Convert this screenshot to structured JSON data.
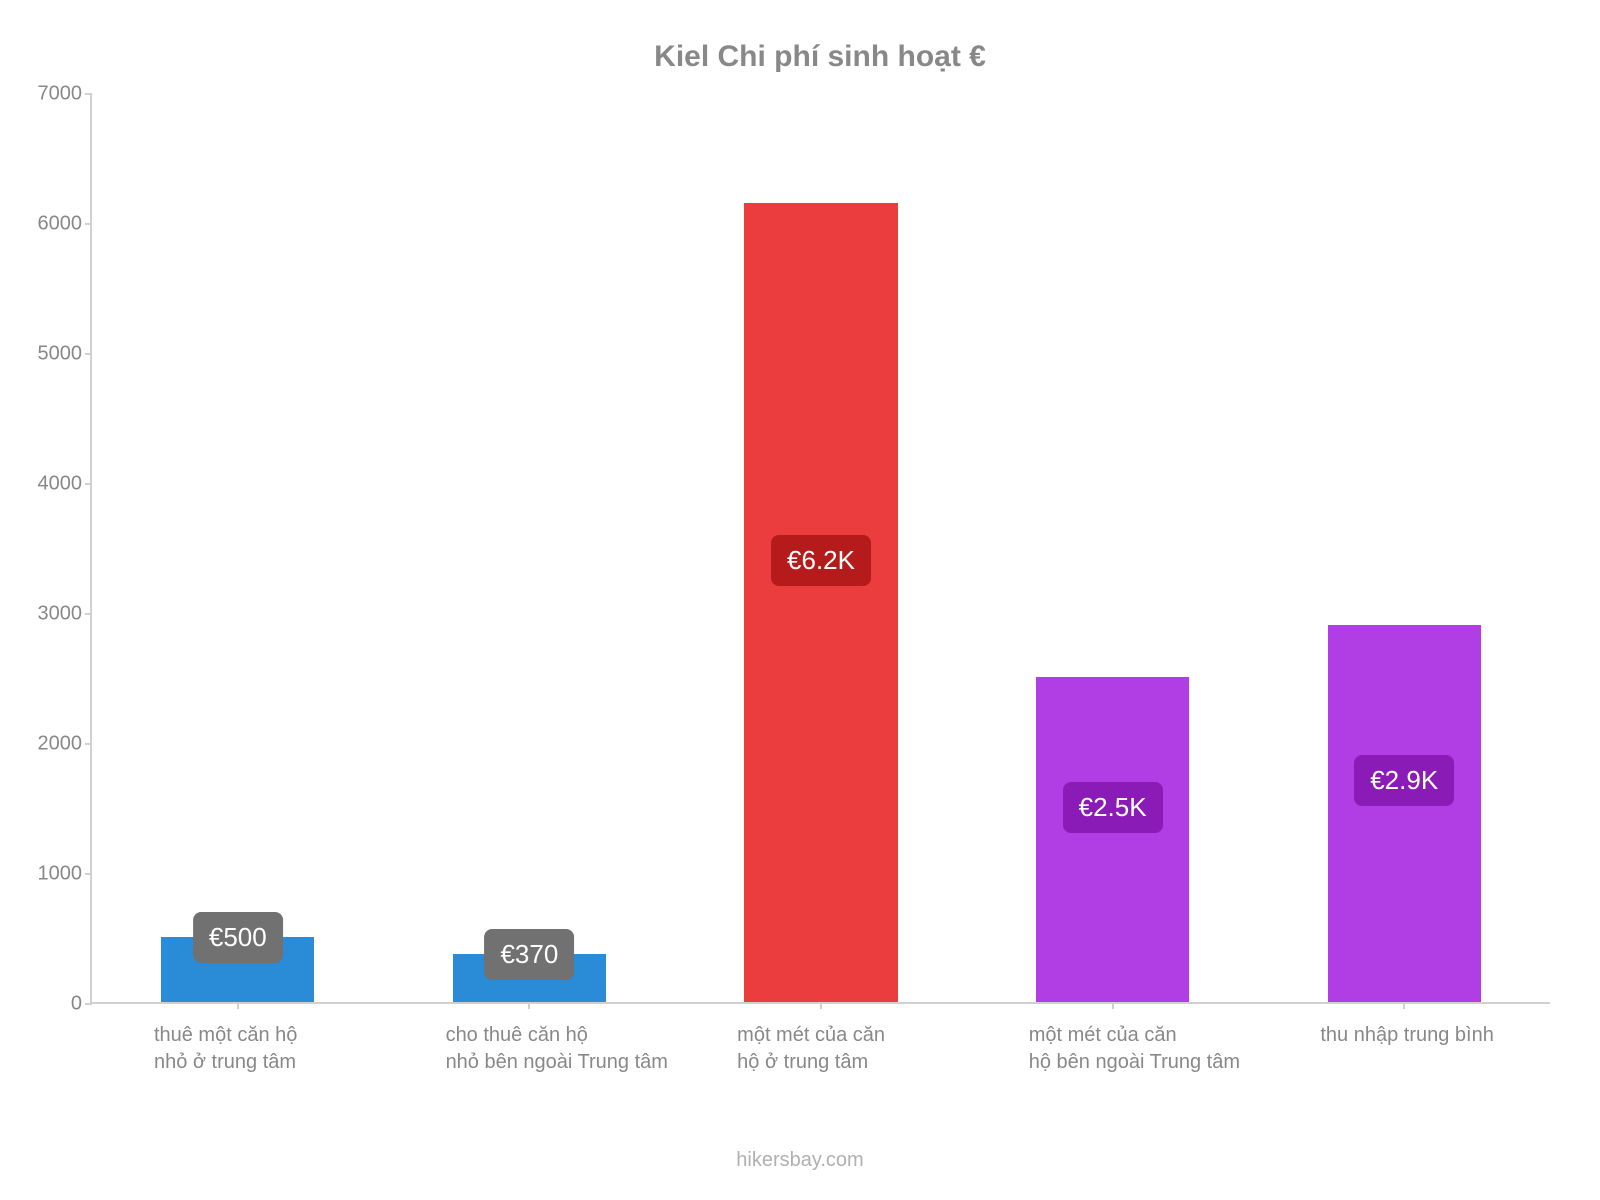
{
  "chart": {
    "type": "bar",
    "title": "Kiel Chi phí sinh hoạt €",
    "title_color": "#888888",
    "title_fontsize": 30,
    "background_color": "#ffffff",
    "axis_color": "#d0d0d0",
    "tick_label_color": "#888888",
    "tick_label_fontsize": 20,
    "ylim_max": 7000,
    "ytick_step": 1000,
    "yticks": [
      "0",
      "1000",
      "2000",
      "3000",
      "4000",
      "5000",
      "6000",
      "7000"
    ],
    "bar_width_pct": 10.5,
    "value_label_fontsize": 26,
    "value_label_text_color": "#ffffff",
    "categories": [
      {
        "label": "thuê một căn hộ\nnhỏ ở trung tâm",
        "value": 500,
        "display": "€500",
        "color": "#2a8bd6",
        "label_bg": "#717171"
      },
      {
        "label": "cho thuê căn hộ\nnhỏ bên ngoài Trung tâm",
        "value": 370,
        "display": "€370",
        "color": "#2a8bd6",
        "label_bg": "#717171"
      },
      {
        "label": "một mét của căn\nhộ ở trung tâm",
        "value": 6150,
        "display": "€6.2K",
        "color": "#eb3d3d",
        "label_bg": "#b61b1b"
      },
      {
        "label": "một mét của căn\nhộ bên ngoài Trung tâm",
        "value": 2500,
        "display": "€2.5K",
        "color": "#b13de4",
        "label_bg": "#8a1bb6"
      },
      {
        "label": "thu nhập trung bình",
        "value": 2900,
        "display": "€2.9K",
        "color": "#b13de4",
        "label_bg": "#8a1bb6"
      }
    ],
    "footer": "hikersbay.com",
    "footer_color": "#b0b0b0",
    "footer_fontsize": 20
  }
}
